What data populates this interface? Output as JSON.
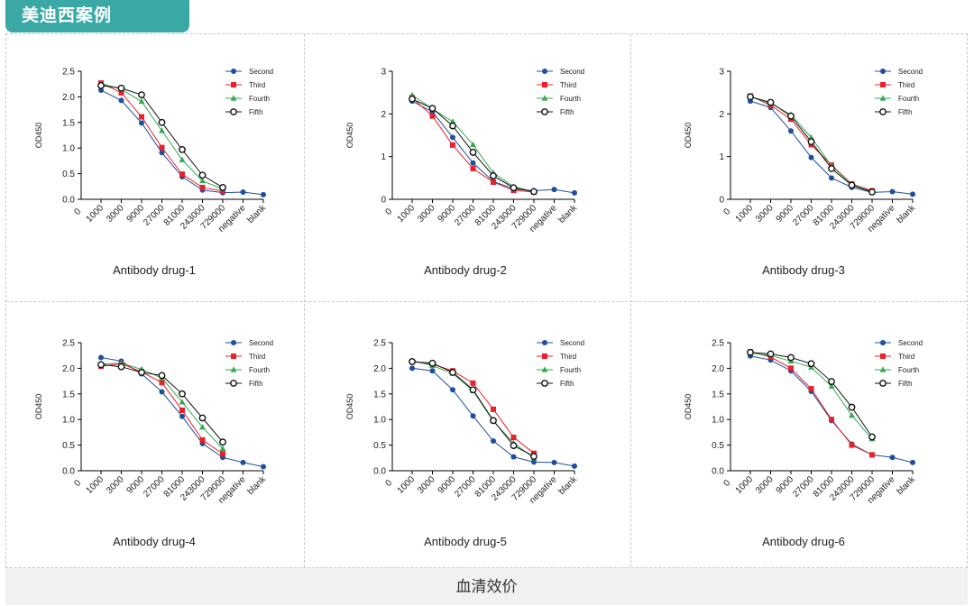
{
  "header": {
    "title": "美迪西案例"
  },
  "footer": {
    "caption": "血清效价"
  },
  "colors": {
    "accent": "#3aa9a6",
    "Second": "#1f4e9c",
    "Third": "#e8202a",
    "Fourth": "#33a852",
    "Fifth": "#111111"
  },
  "chart_data": [
    {
      "type": "line",
      "title": "Antibody drug-1",
      "ylabel": "OD450",
      "ylim": [
        0,
        2.5
      ],
      "yticks": [
        "0.0",
        "0.5",
        "1.0",
        "1.5",
        "2.0",
        "2.5"
      ],
      "x_origin_label": "0",
      "categories": [
        "1000",
        "3000",
        "9000",
        "27000",
        "81000",
        "243000",
        "729000",
        "negative",
        "blank"
      ],
      "series": [
        {
          "name": "Second",
          "values": [
            2.13,
            1.93,
            1.49,
            0.91,
            0.44,
            0.18,
            0.13,
            0.14,
            0.09
          ]
        },
        {
          "name": "Third",
          "values": [
            2.27,
            2.08,
            1.61,
            1.01,
            0.49,
            0.23,
            0.16,
            null,
            null
          ]
        },
        {
          "name": "Fourth",
          "values": [
            2.26,
            2.15,
            1.91,
            1.34,
            0.77,
            0.36,
            0.2,
            null,
            null
          ]
        },
        {
          "name": "Fifth",
          "values": [
            2.22,
            2.17,
            2.04,
            1.5,
            0.97,
            0.47,
            0.23,
            null,
            null
          ]
        }
      ]
    },
    {
      "type": "line",
      "title": "Antibody drug-2",
      "ylabel": "OD450",
      "ylim": [
        0,
        3
      ],
      "yticks": [
        "0",
        "1",
        "2",
        "3"
      ],
      "x_origin_label": "0",
      "categories": [
        "1000",
        "3000",
        "9000",
        "27000",
        "81000",
        "243000",
        "729000",
        "negative",
        "blank"
      ],
      "series": [
        {
          "name": "Second",
          "values": [
            2.3,
            2.05,
            1.45,
            0.85,
            0.42,
            0.24,
            0.2,
            0.23,
            0.15
          ]
        },
        {
          "name": "Third",
          "values": [
            2.38,
            1.95,
            1.27,
            0.72,
            0.4,
            0.21,
            0.17,
            null,
            null
          ]
        },
        {
          "name": "Fourth",
          "values": [
            2.44,
            2.12,
            1.82,
            1.28,
            0.62,
            0.3,
            0.18,
            null,
            null
          ]
        },
        {
          "name": "Fifth",
          "values": [
            2.35,
            2.13,
            1.72,
            1.1,
            0.55,
            0.27,
            0.18,
            null,
            null
          ]
        }
      ]
    },
    {
      "type": "line",
      "title": "Antibody drug-3",
      "ylabel": "OD450",
      "ylim": [
        0,
        3
      ],
      "yticks": [
        "0",
        "1",
        "2",
        "3"
      ],
      "x_origin_label": "0",
      "categories": [
        "1000",
        "3000",
        "9000",
        "27000",
        "81000",
        "243000",
        "729000",
        "negative",
        "blank"
      ],
      "series": [
        {
          "name": "Second",
          "values": [
            2.3,
            2.15,
            1.6,
            0.98,
            0.5,
            0.28,
            0.16,
            0.18,
            0.12
          ]
        },
        {
          "name": "Third",
          "values": [
            2.42,
            2.2,
            1.88,
            1.28,
            0.8,
            0.36,
            0.2,
            null,
            null
          ]
        },
        {
          "name": "Fourth",
          "values": [
            2.4,
            2.25,
            1.98,
            1.45,
            0.78,
            0.35,
            0.18,
            null,
            null
          ]
        },
        {
          "name": "Fifth",
          "values": [
            2.4,
            2.27,
            1.95,
            1.35,
            0.72,
            0.33,
            0.17,
            null,
            null
          ]
        }
      ]
    },
    {
      "type": "line",
      "title": "Antibody drug-4",
      "ylabel": "OD450",
      "ylim": [
        0,
        2.5
      ],
      "yticks": [
        "0.0",
        "0.5",
        "1.0",
        "1.5",
        "2.0",
        "2.5"
      ],
      "x_origin_label": "0",
      "categories": [
        "1000",
        "3000",
        "9000",
        "27000",
        "81000",
        "243000",
        "729000",
        "negative",
        "blank"
      ],
      "series": [
        {
          "name": "Second",
          "values": [
            2.21,
            2.14,
            1.89,
            1.54,
            1.06,
            0.53,
            0.26,
            0.16,
            0.08
          ]
        },
        {
          "name": "Third",
          "values": [
            2.04,
            2.09,
            1.93,
            1.72,
            1.18,
            0.6,
            0.33,
            null,
            null
          ]
        },
        {
          "name": "Fourth",
          "values": [
            2.08,
            2.1,
            1.98,
            1.81,
            1.34,
            0.85,
            0.43,
            null,
            null
          ]
        },
        {
          "name": "Fifth",
          "values": [
            2.07,
            2.03,
            1.92,
            1.86,
            1.5,
            1.03,
            0.56,
            null,
            null
          ]
        }
      ]
    },
    {
      "type": "line",
      "title": "Antibody drug-5",
      "ylabel": "OD450",
      "ylim": [
        0,
        2.5
      ],
      "yticks": [
        "0.0",
        "0.5",
        "1.0",
        "1.5",
        "2.0",
        "2.5"
      ],
      "x_origin_label": "0",
      "categories": [
        "1000",
        "3000",
        "9000",
        "27000",
        "81000",
        "243000",
        "729000",
        "negative",
        "blank"
      ],
      "series": [
        {
          "name": "Second",
          "values": [
            2.0,
            1.95,
            1.58,
            1.07,
            0.58,
            0.27,
            0.17,
            0.16,
            0.09
          ]
        },
        {
          "name": "Third",
          "values": [
            2.13,
            2.08,
            1.95,
            1.71,
            1.2,
            0.65,
            0.34,
            null,
            null
          ]
        },
        {
          "name": "Fourth",
          "values": [
            2.15,
            2.05,
            1.9,
            1.56,
            0.97,
            0.54,
            0.25,
            null,
            null
          ]
        },
        {
          "name": "Fifth",
          "values": [
            2.13,
            2.1,
            1.92,
            1.58,
            0.98,
            0.49,
            0.28,
            null,
            null
          ]
        }
      ]
    },
    {
      "type": "line",
      "title": "Antibody drug-6",
      "ylabel": "OD450",
      "ylim": [
        0,
        2.5
      ],
      "yticks": [
        "0.0",
        "0.5",
        "1.0",
        "1.5",
        "2.0",
        "2.5"
      ],
      "x_origin_label": "0",
      "categories": [
        "1000",
        "3000",
        "9000",
        "27000",
        "81000",
        "243000",
        "729000",
        "negative",
        "blank"
      ],
      "series": [
        {
          "name": "Second",
          "values": [
            2.24,
            2.16,
            1.95,
            1.55,
            0.98,
            0.52,
            0.31,
            0.26,
            0.16
          ]
        },
        {
          "name": "Third",
          "values": [
            2.32,
            2.22,
            2.0,
            1.6,
            1.0,
            0.5,
            0.31,
            null,
            null
          ]
        },
        {
          "name": "Fourth",
          "values": [
            2.3,
            2.25,
            2.14,
            2.02,
            1.65,
            1.08,
            0.62,
            null,
            null
          ]
        },
        {
          "name": "Fifth",
          "values": [
            2.31,
            2.28,
            2.21,
            2.09,
            1.74,
            1.24,
            0.66,
            null,
            null
          ]
        }
      ]
    }
  ]
}
